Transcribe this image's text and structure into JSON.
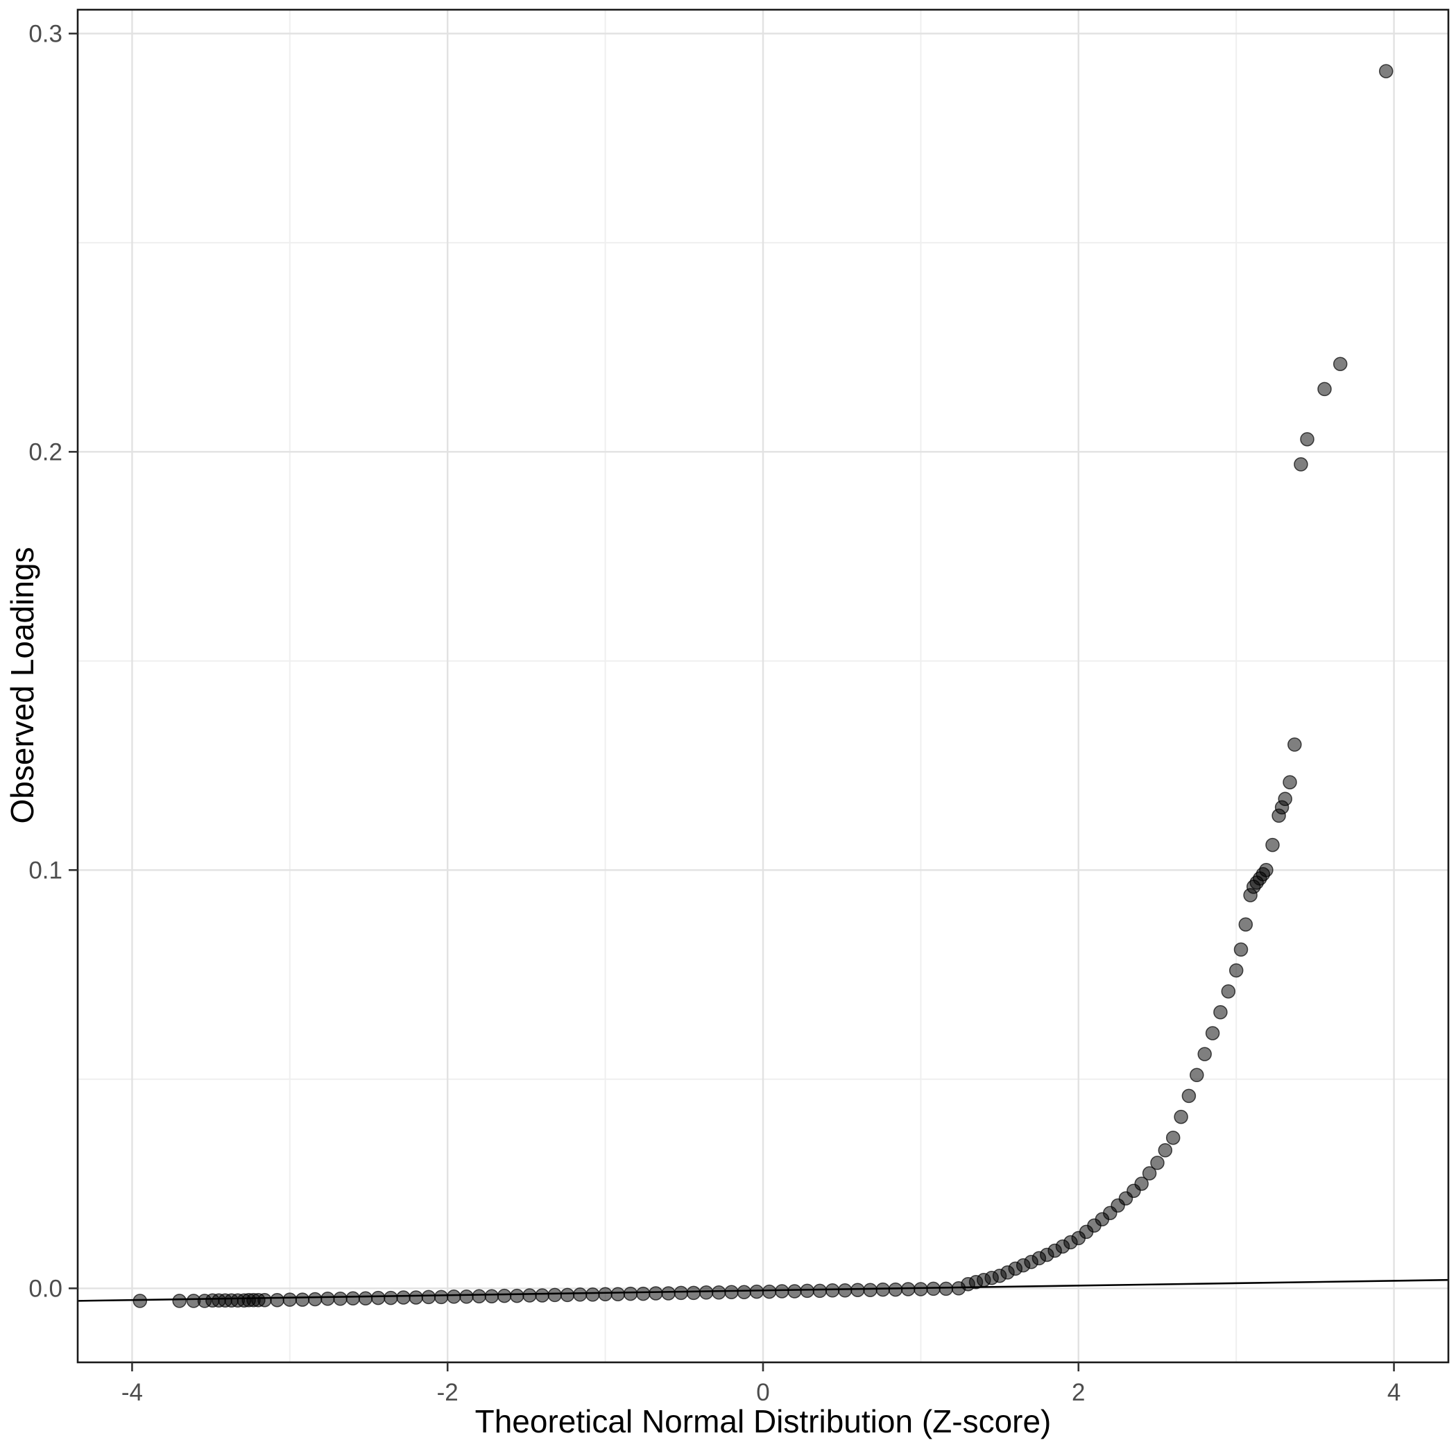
{
  "chart_data": {
    "type": "scatter",
    "title": "",
    "xlabel": "Theoretical Normal Distribution (Z-score)",
    "ylabel": "Observed Loadings",
    "xlim": [
      -4.345,
      4.345
    ],
    "ylim": [
      -0.0177,
      0.3057
    ],
    "grid": true,
    "legend": "none",
    "x_ticks": {
      "values": [
        -4,
        -2,
        0,
        2,
        4
      ],
      "labels": [
        "-4",
        "-2",
        "0",
        "2",
        "4"
      ]
    },
    "x_minor_ticks": [
      -3,
      -1,
      1,
      3
    ],
    "y_ticks": {
      "values": [
        0.0,
        0.1,
        0.2,
        0.3
      ],
      "labels": [
        "0.0",
        "0.1",
        "0.2",
        "0.3"
      ]
    },
    "y_minor_ticks": [
      0.05,
      0.15,
      0.25
    ],
    "reference_line": {
      "x": [
        -4.345,
        4.345
      ],
      "y": [
        -0.003,
        0.002
      ]
    },
    "style": {
      "point_color": "#000000",
      "point_opacity": 0.5,
      "point_stroke": "#000000",
      "grid_major_color": "#e2e2e2",
      "grid_minor_color": "#efefef",
      "panel_border_color": "#1a1a1a",
      "tick_color": "#333333",
      "reference_line_color": "#000000",
      "background": "#ffffff"
    },
    "points": [
      [
        -3.95,
        -0.003
      ],
      [
        -3.7,
        -0.003
      ],
      [
        -3.61,
        -0.003
      ],
      [
        -3.54,
        -0.003
      ],
      [
        -3.49,
        -0.0029
      ],
      [
        -3.45,
        -0.0029
      ],
      [
        -3.41,
        -0.0029
      ],
      [
        -3.37,
        -0.0029
      ],
      [
        -3.33,
        -0.0029
      ],
      [
        -3.29,
        -0.0029
      ],
      [
        -3.26,
        -0.0028
      ],
      [
        -3.23,
        -0.0028
      ],
      [
        -3.2,
        -0.0028
      ],
      [
        -3.16,
        -0.0028
      ],
      [
        -3.08,
        -0.0028
      ],
      [
        -3.0,
        -0.0027
      ],
      [
        -2.92,
        -0.0027
      ],
      [
        -2.84,
        -0.0026
      ],
      [
        -2.76,
        -0.0025
      ],
      [
        -2.68,
        -0.0025
      ],
      [
        -2.6,
        -0.0024
      ],
      [
        -2.52,
        -0.0024
      ],
      [
        -2.44,
        -0.0023
      ],
      [
        -2.36,
        -0.0023
      ],
      [
        -2.28,
        -0.0022
      ],
      [
        -2.2,
        -0.0022
      ],
      [
        -2.12,
        -0.0021
      ],
      [
        -2.04,
        -0.0021
      ],
      [
        -1.96,
        -0.002
      ],
      [
        -1.88,
        -0.002
      ],
      [
        -1.8,
        -0.0019
      ],
      [
        -1.72,
        -0.0019
      ],
      [
        -1.64,
        -0.0018
      ],
      [
        -1.56,
        -0.0018
      ],
      [
        -1.48,
        -0.0017
      ],
      [
        -1.4,
        -0.0017
      ],
      [
        -1.32,
        -0.0016
      ],
      [
        -1.24,
        -0.0016
      ],
      [
        -1.16,
        -0.0015
      ],
      [
        -1.08,
        -0.0015
      ],
      [
        -1.0,
        -0.0014
      ],
      [
        -0.92,
        -0.0014
      ],
      [
        -0.84,
        -0.0013
      ],
      [
        -0.76,
        -0.0013
      ],
      [
        -0.68,
        -0.0012
      ],
      [
        -0.6,
        -0.0012
      ],
      [
        -0.52,
        -0.0011
      ],
      [
        -0.44,
        -0.0011
      ],
      [
        -0.36,
        -0.001
      ],
      [
        -0.28,
        -0.001
      ],
      [
        -0.2,
        -0.0009
      ],
      [
        -0.12,
        -0.0009
      ],
      [
        -0.04,
        -0.0008
      ],
      [
        0.04,
        -0.0008
      ],
      [
        0.12,
        -0.0007
      ],
      [
        0.2,
        -0.0007
      ],
      [
        0.28,
        -0.0006
      ],
      [
        0.36,
        -0.0006
      ],
      [
        0.44,
        -0.0005
      ],
      [
        0.52,
        -0.0005
      ],
      [
        0.6,
        -0.0004
      ],
      [
        0.68,
        -0.0004
      ],
      [
        0.76,
        -0.0003
      ],
      [
        0.84,
        -0.0003
      ],
      [
        0.92,
        -0.0002
      ],
      [
        1.0,
        -0.0002
      ],
      [
        1.08,
        -0.0001
      ],
      [
        1.16,
        -0.0001
      ],
      [
        1.24,
        0.0
      ],
      [
        1.3,
        0.001
      ],
      [
        1.35,
        0.0015
      ],
      [
        1.4,
        0.002
      ],
      [
        1.45,
        0.0025
      ],
      [
        1.5,
        0.003
      ],
      [
        1.55,
        0.0038
      ],
      [
        1.6,
        0.0047
      ],
      [
        1.65,
        0.0055
      ],
      [
        1.7,
        0.0063
      ],
      [
        1.75,
        0.0072
      ],
      [
        1.8,
        0.008
      ],
      [
        1.85,
        0.009
      ],
      [
        1.9,
        0.01
      ],
      [
        1.95,
        0.011
      ],
      [
        2.0,
        0.012
      ],
      [
        2.05,
        0.0135
      ],
      [
        2.1,
        0.015
      ],
      [
        2.15,
        0.0165
      ],
      [
        2.2,
        0.018
      ],
      [
        2.25,
        0.0198
      ],
      [
        2.3,
        0.0215
      ],
      [
        2.35,
        0.0233
      ],
      [
        2.4,
        0.025
      ],
      [
        2.45,
        0.0275
      ],
      [
        2.5,
        0.03
      ],
      [
        2.55,
        0.033
      ],
      [
        2.6,
        0.036
      ],
      [
        2.65,
        0.041
      ],
      [
        2.7,
        0.046
      ],
      [
        2.75,
        0.051
      ],
      [
        2.8,
        0.056
      ],
      [
        2.85,
        0.061
      ],
      [
        2.9,
        0.066
      ],
      [
        2.95,
        0.071
      ],
      [
        3.0,
        0.076
      ],
      [
        3.03,
        0.081
      ],
      [
        3.06,
        0.087
      ],
      [
        3.09,
        0.094
      ],
      [
        3.11,
        0.096
      ],
      [
        3.13,
        0.097
      ],
      [
        3.15,
        0.098
      ],
      [
        3.17,
        0.099
      ],
      [
        3.19,
        0.1
      ],
      [
        3.23,
        0.106
      ],
      [
        3.27,
        0.113
      ],
      [
        3.29,
        0.115
      ],
      [
        3.31,
        0.117
      ],
      [
        3.34,
        0.121
      ],
      [
        3.37,
        0.13
      ],
      [
        3.41,
        0.197
      ],
      [
        3.45,
        0.203
      ],
      [
        3.56,
        0.215
      ],
      [
        3.66,
        0.221
      ],
      [
        3.95,
        0.291
      ]
    ]
  }
}
